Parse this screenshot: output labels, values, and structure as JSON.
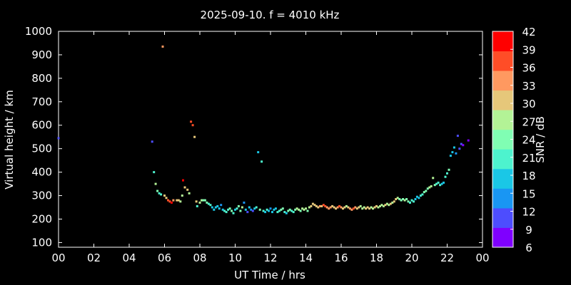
{
  "chart_data": {
    "type": "scatter",
    "title": "2025-09-10. f = 4010 kHz",
    "xlabel": "UT Time / hrs",
    "ylabel": "Virtual height / km",
    "xlim": [
      0,
      24
    ],
    "ylim": [
      80,
      1000
    ],
    "xticks": [
      "00",
      "02",
      "04",
      "06",
      "08",
      "10",
      "12",
      "14",
      "16",
      "18",
      "20",
      "22",
      "00"
    ],
    "yticks": [
      100,
      200,
      300,
      400,
      500,
      600,
      700,
      800,
      900,
      1000
    ],
    "grid": false,
    "colorbar": {
      "label": "SNR / dB",
      "ticks": [
        6,
        9,
        12,
        15,
        18,
        21,
        24,
        27,
        30,
        33,
        36,
        39,
        42
      ],
      "colors": [
        "#7f00ff",
        "#4d4dfe",
        "#1996f3",
        "#1ac7e6",
        "#4df3ce",
        "#80feb3",
        "#b3f396",
        "#e6c77a",
        "#ff9960",
        "#ff4d27",
        "#ff0000"
      ]
    },
    "points": [
      [
        0.0,
        545,
        10
      ],
      [
        5.3,
        530,
        11
      ],
      [
        5.4,
        400,
        21
      ],
      [
        5.5,
        350,
        27
      ],
      [
        5.6,
        320,
        24
      ],
      [
        5.7,
        310,
        22
      ],
      [
        5.8,
        305,
        21
      ],
      [
        5.9,
        935,
        35
      ],
      [
        6.0,
        300,
        29
      ],
      [
        6.1,
        290,
        31
      ],
      [
        6.2,
        280,
        36
      ],
      [
        6.3,
        275,
        38
      ],
      [
        6.4,
        270,
        39
      ],
      [
        6.5,
        280,
        34
      ],
      [
        6.7,
        280,
        32
      ],
      [
        6.8,
        280,
        30
      ],
      [
        6.9,
        275,
        28
      ],
      [
        7.0,
        300,
        27
      ],
      [
        7.05,
        365,
        39
      ],
      [
        7.15,
        335,
        29
      ],
      [
        7.3,
        325,
        30
      ],
      [
        7.4,
        310,
        28
      ],
      [
        7.5,
        615,
        36
      ],
      [
        7.6,
        600,
        38
      ],
      [
        7.7,
        550,
        32
      ],
      [
        7.8,
        275,
        30
      ],
      [
        7.85,
        255,
        21
      ],
      [
        8.0,
        270,
        28
      ],
      [
        8.1,
        280,
        26
      ],
      [
        8.2,
        280,
        25
      ],
      [
        8.3,
        280,
        24
      ],
      [
        8.4,
        270,
        23
      ],
      [
        8.5,
        265,
        22
      ],
      [
        8.6,
        260,
        21
      ],
      [
        8.7,
        250,
        19
      ],
      [
        8.8,
        240,
        16
      ],
      [
        8.9,
        250,
        18
      ],
      [
        9.0,
        255,
        19
      ],
      [
        9.1,
        245,
        17
      ],
      [
        9.2,
        260,
        15
      ],
      [
        9.3,
        240,
        18
      ],
      [
        9.4,
        235,
        20
      ],
      [
        9.5,
        230,
        21
      ],
      [
        9.6,
        240,
        22
      ],
      [
        9.7,
        245,
        23
      ],
      [
        9.8,
        235,
        24
      ],
      [
        9.9,
        225,
        21
      ],
      [
        10.0,
        240,
        18
      ],
      [
        10.1,
        245,
        20
      ],
      [
        10.2,
        255,
        23
      ],
      [
        10.3,
        235,
        25
      ],
      [
        10.4,
        250,
        28
      ],
      [
        10.5,
        270,
        14
      ],
      [
        10.6,
        240,
        16
      ],
      [
        10.7,
        230,
        12
      ],
      [
        10.8,
        250,
        18
      ],
      [
        10.9,
        240,
        13
      ],
      [
        11.0,
        235,
        10
      ],
      [
        11.1,
        245,
        16
      ],
      [
        11.2,
        250,
        20
      ],
      [
        11.3,
        485,
        17
      ],
      [
        11.4,
        240,
        24
      ],
      [
        11.5,
        445,
        20
      ],
      [
        11.6,
        235,
        22
      ],
      [
        11.7,
        230,
        19
      ],
      [
        11.8,
        240,
        21
      ],
      [
        11.9,
        235,
        16
      ],
      [
        12.0,
        245,
        14
      ],
      [
        12.1,
        230,
        18
      ],
      [
        12.2,
        240,
        19
      ],
      [
        12.3,
        245,
        17
      ],
      [
        12.4,
        230,
        20
      ],
      [
        12.5,
        235,
        22
      ],
      [
        12.6,
        240,
        24
      ],
      [
        12.7,
        245,
        25
      ],
      [
        12.8,
        230,
        21
      ],
      [
        12.9,
        225,
        19
      ],
      [
        13.0,
        235,
        23
      ],
      [
        13.1,
        240,
        24
      ],
      [
        13.2,
        235,
        22
      ],
      [
        13.3,
        230,
        21
      ],
      [
        13.4,
        240,
        25
      ],
      [
        13.5,
        245,
        26
      ],
      [
        13.6,
        240,
        27
      ],
      [
        13.7,
        235,
        24
      ],
      [
        13.8,
        245,
        26
      ],
      [
        13.9,
        240,
        28
      ],
      [
        14.0,
        245,
        27
      ],
      [
        14.1,
        235,
        25
      ],
      [
        14.2,
        250,
        28
      ],
      [
        14.3,
        255,
        30
      ],
      [
        14.4,
        265,
        31
      ],
      [
        14.5,
        260,
        32
      ],
      [
        14.6,
        255,
        30
      ],
      [
        14.7,
        250,
        29
      ],
      [
        14.8,
        255,
        33
      ],
      [
        14.9,
        255,
        31
      ],
      [
        15.0,
        260,
        36
      ],
      [
        15.1,
        255,
        38
      ],
      [
        15.2,
        250,
        35
      ],
      [
        15.3,
        245,
        33
      ],
      [
        15.4,
        250,
        34
      ],
      [
        15.5,
        255,
        32
      ],
      [
        15.6,
        250,
        30
      ],
      [
        15.7,
        245,
        31
      ],
      [
        15.8,
        250,
        35
      ],
      [
        15.9,
        255,
        37
      ],
      [
        16.0,
        250,
        34
      ],
      [
        16.1,
        245,
        32
      ],
      [
        16.2,
        250,
        30
      ],
      [
        16.3,
        255,
        28
      ],
      [
        16.4,
        250,
        31
      ],
      [
        16.5,
        245,
        33
      ],
      [
        16.6,
        240,
        35
      ],
      [
        16.7,
        245,
        38
      ],
      [
        16.8,
        250,
        34
      ],
      [
        16.9,
        245,
        30
      ],
      [
        17.0,
        250,
        29
      ],
      [
        17.1,
        255,
        28
      ],
      [
        17.2,
        245,
        26
      ],
      [
        17.3,
        250,
        27
      ],
      [
        17.4,
        245,
        29
      ],
      [
        17.5,
        250,
        31
      ],
      [
        17.6,
        245,
        30
      ],
      [
        17.7,
        250,
        28
      ],
      [
        17.8,
        245,
        27
      ],
      [
        17.9,
        250,
        29
      ],
      [
        18.0,
        255,
        30
      ],
      [
        18.1,
        250,
        28
      ],
      [
        18.2,
        255,
        27
      ],
      [
        18.3,
        260,
        26
      ],
      [
        18.4,
        255,
        28
      ],
      [
        18.5,
        260,
        29
      ],
      [
        18.6,
        265,
        28
      ],
      [
        18.7,
        260,
        27
      ],
      [
        18.8,
        265,
        29
      ],
      [
        18.9,
        270,
        28
      ],
      [
        19.0,
        275,
        30
      ],
      [
        19.1,
        285,
        32
      ],
      [
        19.2,
        290,
        28
      ],
      [
        19.3,
        285,
        24
      ],
      [
        19.4,
        280,
        23
      ],
      [
        19.5,
        285,
        25
      ],
      [
        19.6,
        280,
        26
      ],
      [
        19.7,
        285,
        24
      ],
      [
        19.8,
        275,
        23
      ],
      [
        19.9,
        270,
        21
      ],
      [
        20.0,
        280,
        22
      ],
      [
        20.1,
        275,
        20
      ],
      [
        20.2,
        285,
        19
      ],
      [
        20.3,
        295,
        18
      ],
      [
        20.4,
        290,
        17
      ],
      [
        20.5,
        300,
        20
      ],
      [
        20.6,
        305,
        22
      ],
      [
        20.7,
        315,
        23
      ],
      [
        20.8,
        320,
        24
      ],
      [
        20.9,
        330,
        25
      ],
      [
        21.0,
        335,
        26
      ],
      [
        21.1,
        340,
        27
      ],
      [
        21.2,
        375,
        28
      ],
      [
        21.3,
        345,
        24
      ],
      [
        21.4,
        350,
        22
      ],
      [
        21.5,
        355,
        21
      ],
      [
        21.6,
        345,
        20
      ],
      [
        21.7,
        350,
        18
      ],
      [
        21.8,
        355,
        19
      ],
      [
        21.9,
        380,
        20
      ],
      [
        22.0,
        395,
        22
      ],
      [
        22.1,
        410,
        23
      ],
      [
        22.2,
        470,
        19
      ],
      [
        22.3,
        485,
        18
      ],
      [
        22.4,
        505,
        16
      ],
      [
        22.5,
        480,
        14
      ],
      [
        22.6,
        555,
        11
      ],
      [
        22.7,
        500,
        12
      ],
      [
        22.8,
        520,
        10
      ],
      [
        22.9,
        515,
        9
      ],
      [
        23.2,
        535,
        8
      ]
    ]
  }
}
